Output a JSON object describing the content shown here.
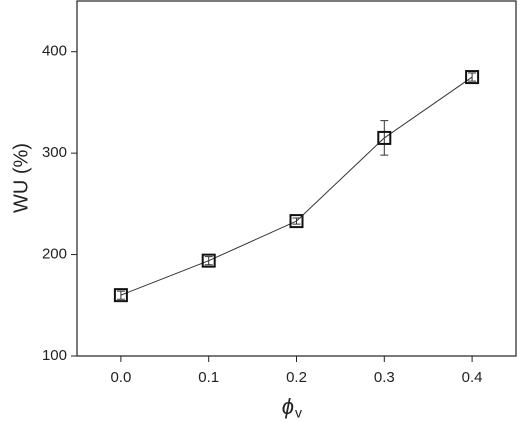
{
  "chart_data": {
    "type": "line",
    "ylabel": "WU (%)",
    "xlabel": "ϕ",
    "xlabel_subscript": "v",
    "x": [
      0.0,
      0.1,
      0.2,
      0.3,
      0.4
    ],
    "series": [
      {
        "color": "#333333",
        "values": [
          160,
          194,
          233,
          315,
          375
        ],
        "errors": [
          4,
          4,
          3,
          17,
          4
        ]
      }
    ],
    "xlim": [
      -0.05,
      0.45
    ],
    "xticks": [
      {
        "value": 0,
        "label": "0.0"
      },
      0.1,
      0.2,
      0.3,
      0.4
    ],
    "ylim": [
      100,
      450
    ],
    "yticks": [
      100,
      200,
      300,
      400
    ],
    "grid": false,
    "marker": "square"
  }
}
